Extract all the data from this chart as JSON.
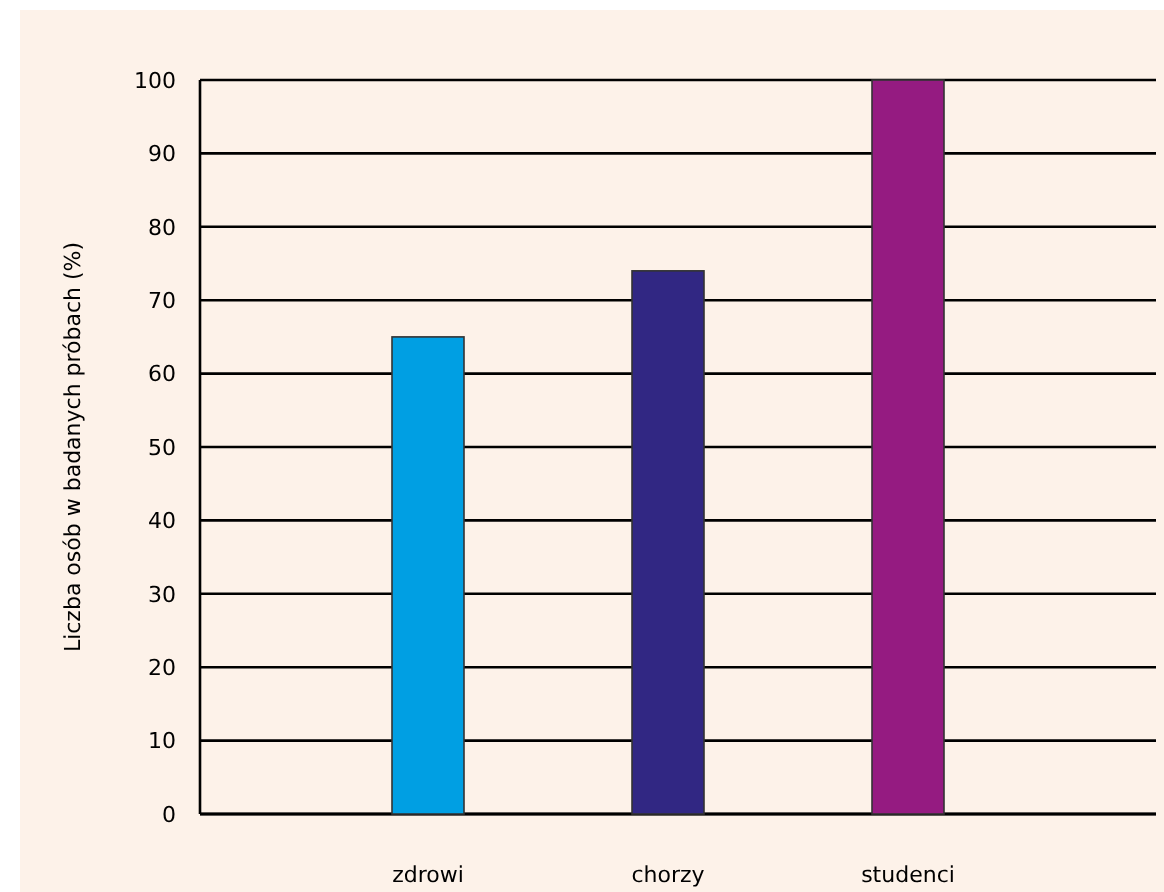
{
  "chart_data": {
    "type": "bar",
    "ylabel": "Liczba osób w badanych próbach (%)",
    "categories": [
      "zdrowi",
      "chorzy",
      "studenci"
    ],
    "values": [
      65,
      74,
      100
    ],
    "colors": [
      "#009fe3",
      "#312783",
      "#951b81"
    ],
    "ylim": [
      0,
      100
    ],
    "yticks": [
      0,
      10,
      20,
      30,
      40,
      50,
      60,
      70,
      80,
      90,
      100
    ],
    "grid": "y"
  }
}
